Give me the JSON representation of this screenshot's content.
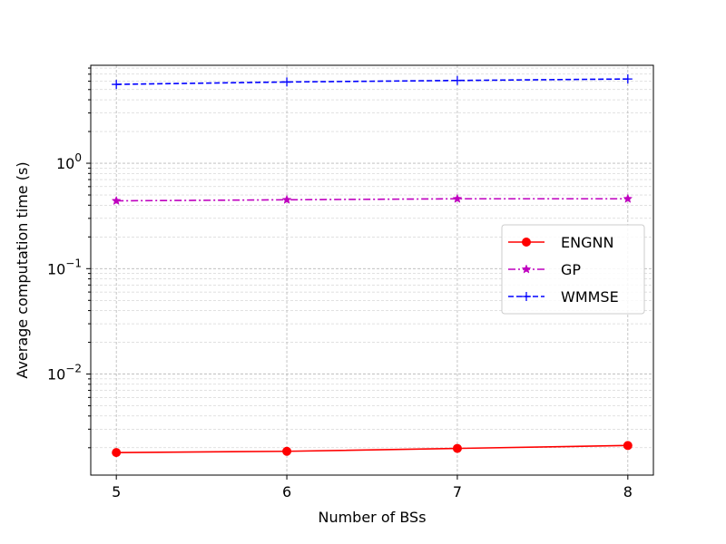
{
  "chart_data": {
    "type": "line",
    "title": "",
    "xlabel": "Number of BSs",
    "ylabel": "Average computation time (s)",
    "x": [
      5,
      6,
      7,
      8
    ],
    "x_ticks": [
      5,
      6,
      7,
      8
    ],
    "yscale": "log",
    "ylim": [
      0.0011,
      8.5
    ],
    "y_ticks": [
      {
        "value": 0.01,
        "base": "10",
        "exp": "−2"
      },
      {
        "value": 0.1,
        "base": "10",
        "exp": "−1"
      },
      {
        "value": 1,
        "base": "10",
        "exp": "0"
      }
    ],
    "grid": true,
    "legend_position": "center-right",
    "series": [
      {
        "name": "ENGNN",
        "values": [
          0.0018,
          0.00185,
          0.00197,
          0.0021
        ],
        "color": "#ff0000",
        "linestyle": "solid",
        "marker": "circle"
      },
      {
        "name": "GP",
        "values": [
          0.44,
          0.45,
          0.46,
          0.46
        ],
        "color": "#bf00bf",
        "linestyle": "dashdot",
        "marker": "star"
      },
      {
        "name": "WMMSE",
        "values": [
          5.6,
          5.9,
          6.1,
          6.3
        ],
        "color": "#0000ff",
        "linestyle": "dashed",
        "marker": "plus"
      }
    ]
  }
}
